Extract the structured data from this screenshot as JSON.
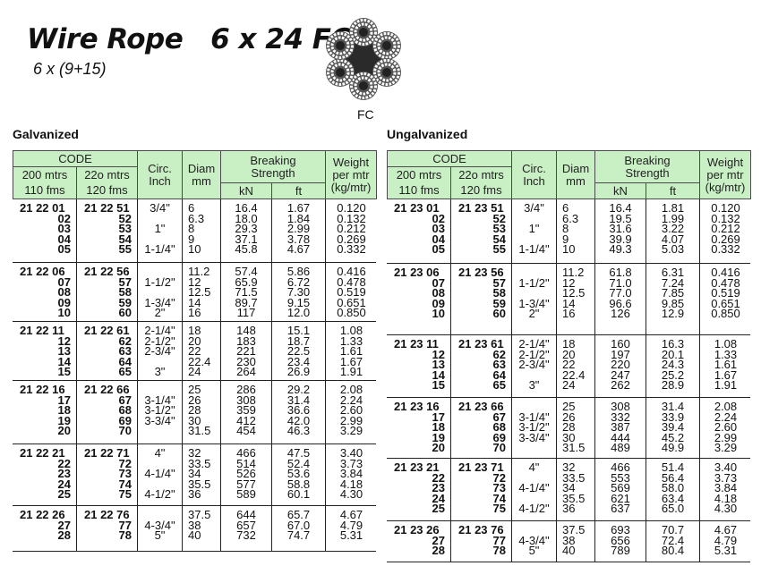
{
  "header": {
    "title": "Wire Rope   6 x 24 FC",
    "subtitle": "6 x (9+15)",
    "rope_label": "FC",
    "rope_image_icon": "wire-rope-cross-section"
  },
  "colors": {
    "header_bg": "#c9efc4"
  },
  "columns": {
    "code": "CODE",
    "code1_line1": "200 mtrs",
    "code1_line2": "110 fms",
    "code2_line1": "22o mtrs",
    "code2_line2": "120 fms",
    "circ_line1": "Circ.",
    "circ_line2": "Inch",
    "diam_line1": "Diam",
    "diam_line2": "mm",
    "breaking_line1": "Breaking",
    "breaking_line2": "Strength",
    "kn": "kN",
    "ft": "ft",
    "weight_line1": "Weight",
    "weight_line2": "per mtr",
    "weight_line3": "(kg/mtr)"
  },
  "tables": [
    {
      "title": "Galvanized",
      "groups": [
        [
          [
            "21 22 01",
            "21 22 51",
            "3/4\"",
            "6",
            "16.4",
            "1.67",
            "0.120"
          ],
          [
            "02",
            "52",
            "",
            "6.3",
            "18.0",
            "1.84",
            "0.132"
          ],
          [
            "03",
            "53",
            "1\"",
            "8",
            "29.3",
            "2.99",
            "0.212"
          ],
          [
            "04",
            "54",
            "",
            "9",
            "37.1",
            "3.78",
            "0.269"
          ],
          [
            "05",
            "55",
            "1-1/4\"",
            "10",
            "45.8",
            "4.67",
            "0.332"
          ]
        ],
        [
          [
            "21 22 06",
            "21 22 56",
            "",
            "11.2",
            "57.4",
            "5.86",
            "0.416"
          ],
          [
            "07",
            "57",
            "1-1/2\"",
            "12",
            "65.9",
            "6.72",
            "0.478"
          ],
          [
            "08",
            "58",
            "",
            "12.5",
            "71.5",
            "7.30",
            "0.519"
          ],
          [
            "09",
            "59",
            "1-3/4\"",
            "14",
            "89.7",
            "9.15",
            "0.651"
          ],
          [
            "10",
            "60",
            "2\"",
            "16",
            "117",
            "12.0",
            "0.850"
          ]
        ],
        [
          [
            "21 22 11",
            "21 22 61",
            "2-1/4\"",
            "18",
            "148",
            "15.1",
            "1.08"
          ],
          [
            "12",
            "62",
            "2-1/2\"",
            "20",
            "183",
            "18.7",
            "1.33"
          ],
          [
            "13",
            "63",
            "2-3/4\"",
            "22",
            "221",
            "22.5",
            "1.61"
          ],
          [
            "14",
            "64",
            "",
            "22.4",
            "230",
            "23.4",
            "1.67"
          ],
          [
            "15",
            "65",
            "3\"",
            "24",
            "264",
            "26.9",
            "1.91"
          ]
        ],
        [
          [
            "21 22 16",
            "21 22 66",
            "",
            "25",
            "286",
            "29.2",
            "2.08"
          ],
          [
            "17",
            "67",
            "3-1/4\"",
            "26",
            "308",
            "31.4",
            "2.24"
          ],
          [
            "18",
            "68",
            "3-1/2\"",
            "28",
            "359",
            "36.6",
            "2.60"
          ],
          [
            "19",
            "69",
            "3-3/4\"",
            "30",
            "412",
            "42.0",
            "2.99"
          ],
          [
            "20",
            "70",
            "",
            "31.5",
            "454",
            "46.3",
            "3.29"
          ]
        ],
        [
          [
            "21 22 21",
            "21 22 71",
            "4\"",
            "32",
            "466",
            "47.5",
            "3.40"
          ],
          [
            "22",
            "72",
            "",
            "33.5",
            "514",
            "52.4",
            "3.73"
          ],
          [
            "23",
            "73",
            "4-1/4\"",
            "34",
            "526",
            "53.6",
            "3.84"
          ],
          [
            "24",
            "74",
            "",
            "35.5",
            "577",
            "58.8",
            "4.18"
          ],
          [
            "25",
            "75",
            "4-1/2\"",
            "36",
            "589",
            "60.1",
            "4.30"
          ]
        ],
        [
          [
            "21 22 26",
            "21 22 76",
            "",
            "37.5",
            "644",
            "65.7",
            "4.67"
          ],
          [
            "27",
            "77",
            "4-3/4\"",
            "38",
            "657",
            "67.0",
            "4.79"
          ],
          [
            "28",
            "78",
            "5\"",
            "40",
            "732",
            "74.7",
            "5.31"
          ]
        ]
      ]
    },
    {
      "title": "Ungalvanized",
      "groups": [
        [
          [
            "21 23 01",
            "21 23 51",
            "3/4\"",
            "6",
            "16.4",
            "1.81",
            "0.120"
          ],
          [
            "02",
            "52",
            "",
            "6.3",
            "19.5",
            "1.99",
            "0.132"
          ],
          [
            "03",
            "53",
            "1\"",
            "8",
            "31.6",
            "3.22",
            "0.212"
          ],
          [
            "04",
            "54",
            "",
            "9",
            "39.9",
            "4.07",
            "0.269"
          ],
          [
            "05",
            "55",
            "1-1/4\"",
            "10",
            "49.3",
            "5.03",
            "0.332"
          ]
        ],
        [
          [
            "21 23 06",
            "21 23 56",
            "",
            "11.2",
            "61.8",
            "6.31",
            "0.416"
          ],
          [
            "07",
            "57",
            "1-1/2\"",
            "12",
            "71.0",
            "7.24",
            "0.478"
          ],
          [
            "08",
            "58",
            "",
            "12.5",
            "77.0",
            "7.85",
            "0.519"
          ],
          [
            "09",
            "59",
            "1-3/4\"",
            "14",
            "96.6",
            "9.85",
            "0.651"
          ],
          [
            "10",
            "60",
            "2\"",
            "16",
            "126",
            "12.9",
            "0.850"
          ]
        ],
        [
          [
            "21 23 11",
            "21 23 61",
            "2-1/4\"",
            "18",
            "160",
            "16.3",
            "1.08"
          ],
          [
            "12",
            "62",
            "2-1/2\"",
            "20",
            "197",
            "20.1",
            "1.33"
          ],
          [
            "13",
            "63",
            "2-3/4\"",
            "22",
            "220",
            "24.3",
            "1.61"
          ],
          [
            "14",
            "64",
            "",
            "22.4",
            "247",
            "25.2",
            "1.67"
          ],
          [
            "15",
            "65",
            "3\"",
            "24",
            "262",
            "28.9",
            "1.91"
          ]
        ],
        [
          [
            "21 23 16",
            "21 23 66",
            "",
            "25",
            "308",
            "31.4",
            "2.08"
          ],
          [
            "17",
            "67",
            "3-1/4\"",
            "26",
            "332",
            "33.9",
            "2.24"
          ],
          [
            "18",
            "68",
            "3-1/2\"",
            "28",
            "387",
            "39.4",
            "2.60"
          ],
          [
            "19",
            "69",
            "3-3/4\"",
            "30",
            "444",
            "45.2",
            "2.99"
          ],
          [
            "20",
            "70",
            "",
            "31.5",
            "489",
            "49.9",
            "3.29"
          ]
        ],
        [
          [
            "21 23 21",
            "21 23 71",
            "4\"",
            "32",
            "466",
            "51.4",
            "3.40"
          ],
          [
            "22",
            "72",
            "",
            "33.5",
            "553",
            "56.4",
            "3.73"
          ],
          [
            "23",
            "73",
            "4-1/4\"",
            "34",
            "569",
            "58.0",
            "3.84"
          ],
          [
            "24",
            "74",
            "",
            "35.5",
            "621",
            "63.4",
            "4.18"
          ],
          [
            "25",
            "75",
            "4-1/2\"",
            "36",
            "637",
            "65.0",
            "4.30"
          ]
        ],
        [
          [
            "21 23 26",
            "21 23 76",
            "",
            "37.5",
            "693",
            "70.7",
            "4.67"
          ],
          [
            "27",
            "77",
            "4-3/4\"",
            "38",
            "656",
            "72.4",
            "4.79"
          ],
          [
            "28",
            "78",
            "5\"",
            "40",
            "789",
            "80.4",
            "5.31"
          ]
        ]
      ]
    }
  ]
}
